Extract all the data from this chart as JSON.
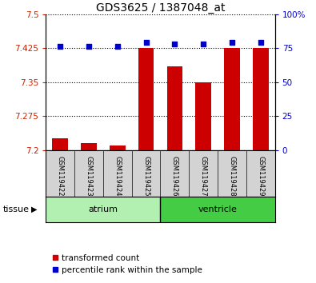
{
  "title": "GDS3625 / 1387048_at",
  "samples": [
    "GSM119422",
    "GSM119423",
    "GSM119424",
    "GSM119425",
    "GSM119426",
    "GSM119427",
    "GSM119428",
    "GSM119429"
  ],
  "transformed_counts": [
    7.225,
    7.215,
    7.21,
    7.425,
    7.385,
    7.35,
    7.425,
    7.425
  ],
  "percentile_ranks": [
    76,
    76,
    76,
    79,
    78,
    78,
    79,
    79
  ],
  "ylim_left": [
    7.2,
    7.5
  ],
  "ylim_right": [
    0,
    100
  ],
  "yticks_left": [
    7.2,
    7.275,
    7.35,
    7.425,
    7.5
  ],
  "ytick_labels_left": [
    "7.2",
    "7.275",
    "7.35",
    "7.425",
    "7.5"
  ],
  "yticks_right": [
    0,
    25,
    50,
    75,
    100
  ],
  "ytick_labels_right": [
    "0",
    "25",
    "50",
    "75",
    "100%"
  ],
  "groups": [
    {
      "name": "atrium",
      "indices": [
        0,
        1,
        2,
        3
      ],
      "color": "#b2f0b2"
    },
    {
      "name": "ventricle",
      "indices": [
        4,
        5,
        6,
        7
      ],
      "color": "#44cc44"
    }
  ],
  "bar_color": "#cc0000",
  "dot_color": "#0000cc",
  "bar_width": 0.55,
  "bg_color": "#ffffff",
  "axis_color_left": "#cc2200",
  "axis_color_right": "#0000cc",
  "tissue_label": "tissue",
  "legend_items": [
    {
      "label": "transformed count",
      "color": "#cc0000"
    },
    {
      "label": "percentile rank within the sample",
      "color": "#0000cc"
    }
  ]
}
